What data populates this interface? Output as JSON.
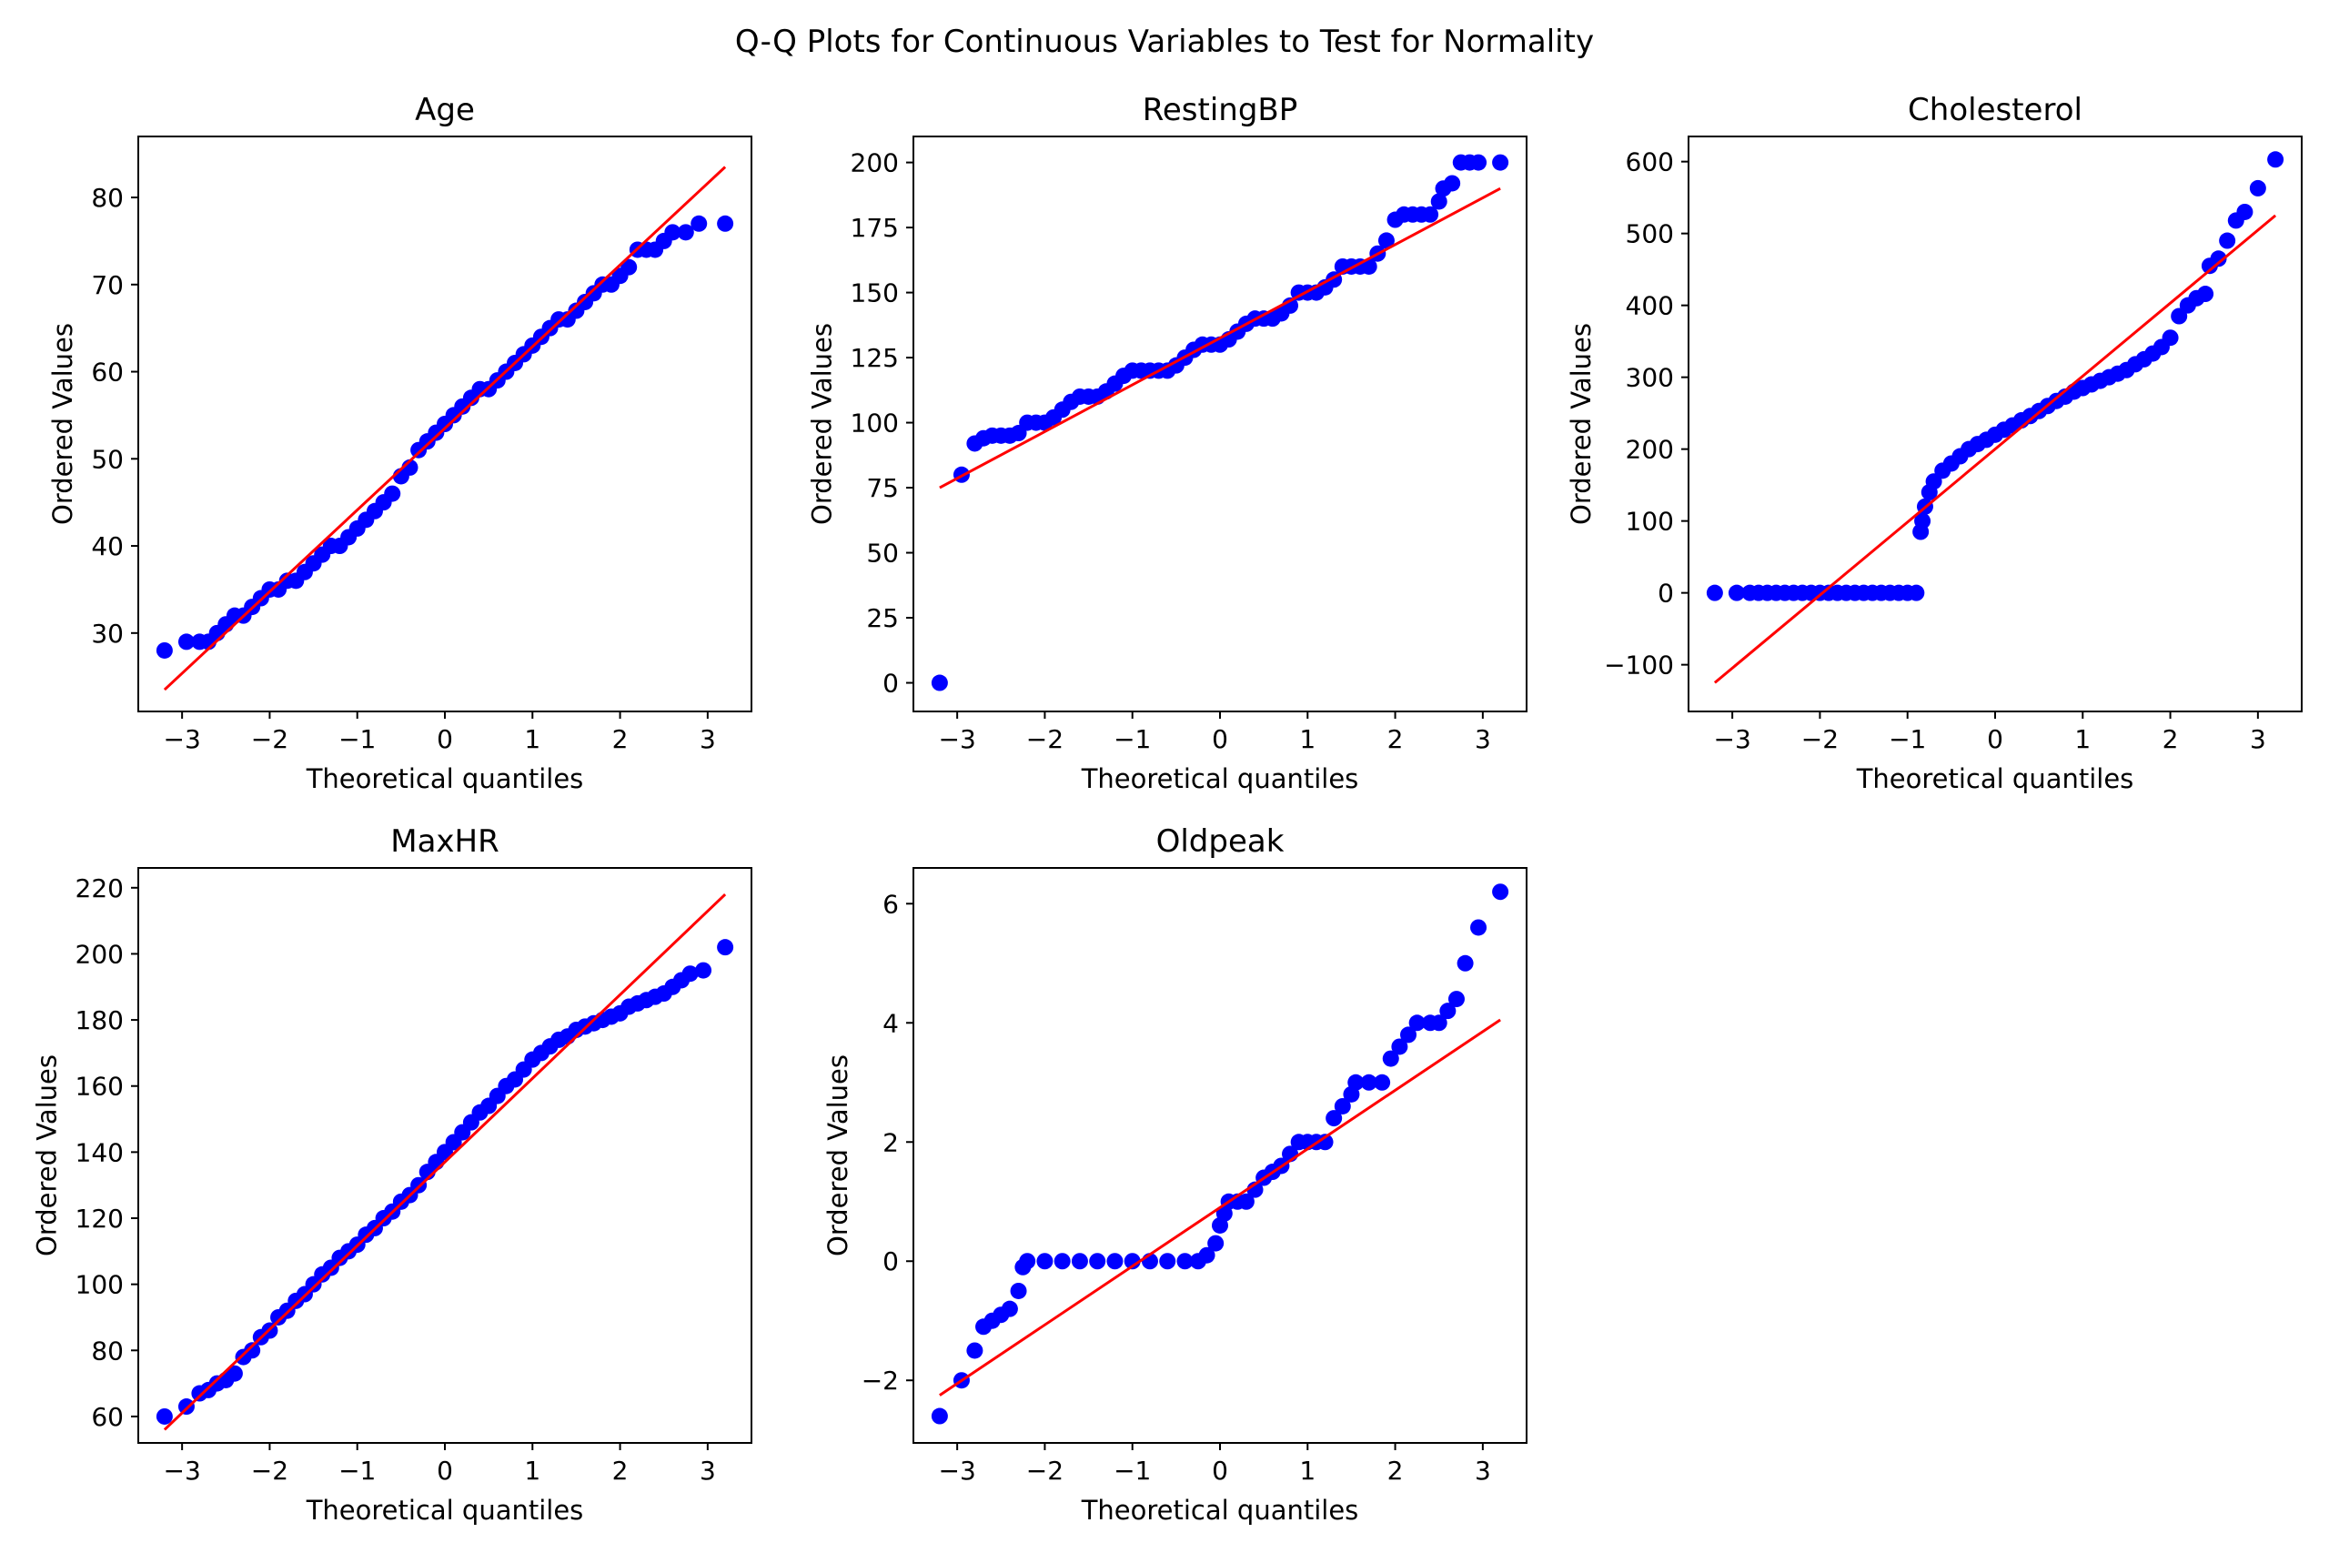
{
  "title": "Q-Q Plots for Continuous Variables to Test for Normality",
  "colors": {
    "points": "#0000ff",
    "fit_line": "#ff0000",
    "axes": "#000000"
  },
  "chart_data": [
    {
      "type": "scatter",
      "title": "Age",
      "xlabel": "Theoretical quantiles",
      "ylabel": "Ordered Values",
      "xlim": [
        -3.5,
        3.5
      ],
      "ylim": [
        21,
        87
      ],
      "xticks": [
        -3,
        -2,
        -1,
        0,
        1,
        2,
        3
      ],
      "yticks": [
        30,
        40,
        50,
        60,
        70,
        80
      ],
      "fit_line": [
        [
          -3.2,
          23.5
        ],
        [
          3.2,
          83.5
        ]
      ],
      "points": [
        [
          -3.2,
          28
        ],
        [
          -2.95,
          29
        ],
        [
          -2.8,
          29
        ],
        [
          -2.7,
          29
        ],
        [
          -2.6,
          30
        ],
        [
          -2.5,
          31
        ],
        [
          -2.4,
          32
        ],
        [
          -2.3,
          32
        ],
        [
          -2.2,
          33
        ],
        [
          -2.1,
          34
        ],
        [
          -2.0,
          35
        ],
        [
          -1.9,
          35
        ],
        [
          -1.8,
          36
        ],
        [
          -1.7,
          36
        ],
        [
          -1.6,
          37
        ],
        [
          -1.5,
          38
        ],
        [
          -1.4,
          39
        ],
        [
          -1.3,
          40
        ],
        [
          -1.2,
          40
        ],
        [
          -1.1,
          41
        ],
        [
          -1.0,
          42
        ],
        [
          -0.9,
          43
        ],
        [
          -0.8,
          44
        ],
        [
          -0.7,
          45
        ],
        [
          -0.6,
          46
        ],
        [
          -0.5,
          48
        ],
        [
          -0.4,
          49
        ],
        [
          -0.3,
          51
        ],
        [
          -0.2,
          52
        ],
        [
          -0.1,
          53
        ],
        [
          0.0,
          54
        ],
        [
          0.1,
          55
        ],
        [
          0.2,
          56
        ],
        [
          0.3,
          57
        ],
        [
          0.4,
          58
        ],
        [
          0.5,
          58
        ],
        [
          0.6,
          59
        ],
        [
          0.7,
          60
        ],
        [
          0.8,
          61
        ],
        [
          0.9,
          62
        ],
        [
          1.0,
          63
        ],
        [
          1.1,
          64
        ],
        [
          1.2,
          65
        ],
        [
          1.3,
          66
        ],
        [
          1.4,
          66
        ],
        [
          1.5,
          67
        ],
        [
          1.6,
          68
        ],
        [
          1.7,
          69
        ],
        [
          1.8,
          70
        ],
        [
          1.9,
          70
        ],
        [
          2.0,
          71
        ],
        [
          2.1,
          72
        ],
        [
          2.2,
          74
        ],
        [
          2.3,
          74
        ],
        [
          2.4,
          74
        ],
        [
          2.5,
          75
        ],
        [
          2.6,
          76
        ],
        [
          2.75,
          76
        ],
        [
          2.9,
          77
        ],
        [
          3.2,
          77
        ]
      ]
    },
    {
      "type": "scatter",
      "title": "RestingBP",
      "xlabel": "Theoretical quantiles",
      "ylabel": "Ordered Values",
      "xlim": [
        -3.5,
        3.5
      ],
      "ylim": [
        -11,
        210
      ],
      "xticks": [
        -3,
        -2,
        -1,
        0,
        1,
        2,
        3
      ],
      "yticks": [
        0,
        25,
        50,
        75,
        100,
        125,
        150,
        175,
        200
      ],
      "fit_line": [
        [
          -3.2,
          75
        ],
        [
          3.2,
          190
        ]
      ],
      "points": [
        [
          -3.2,
          0
        ],
        [
          -2.95,
          80
        ],
        [
          -2.8,
          92
        ],
        [
          -2.7,
          94
        ],
        [
          -2.6,
          95
        ],
        [
          -2.5,
          95
        ],
        [
          -2.4,
          95
        ],
        [
          -2.3,
          96
        ],
        [
          -2.2,
          100
        ],
        [
          -2.1,
          100
        ],
        [
          -2.0,
          100
        ],
        [
          -1.9,
          102
        ],
        [
          -1.8,
          105
        ],
        [
          -1.7,
          108
        ],
        [
          -1.6,
          110
        ],
        [
          -1.5,
          110
        ],
        [
          -1.4,
          110
        ],
        [
          -1.3,
          112
        ],
        [
          -1.2,
          115
        ],
        [
          -1.1,
          118
        ],
        [
          -1.0,
          120
        ],
        [
          -0.9,
          120
        ],
        [
          -0.8,
          120
        ],
        [
          -0.7,
          120
        ],
        [
          -0.6,
          120
        ],
        [
          -0.5,
          122
        ],
        [
          -0.4,
          125
        ],
        [
          -0.3,
          128
        ],
        [
          -0.2,
          130
        ],
        [
          -0.1,
          130
        ],
        [
          0.0,
          130
        ],
        [
          0.1,
          132
        ],
        [
          0.2,
          135
        ],
        [
          0.3,
          138
        ],
        [
          0.4,
          140
        ],
        [
          0.5,
          140
        ],
        [
          0.6,
          140
        ],
        [
          0.7,
          142
        ],
        [
          0.8,
          145
        ],
        [
          0.9,
          150
        ],
        [
          1.0,
          150
        ],
        [
          1.1,
          150
        ],
        [
          1.2,
          152
        ],
        [
          1.3,
          155
        ],
        [
          1.4,
          160
        ],
        [
          1.5,
          160
        ],
        [
          1.6,
          160
        ],
        [
          1.7,
          160
        ],
        [
          1.8,
          165
        ],
        [
          1.9,
          170
        ],
        [
          2.0,
          178
        ],
        [
          2.1,
          180
        ],
        [
          2.2,
          180
        ],
        [
          2.3,
          180
        ],
        [
          2.4,
          180
        ],
        [
          2.5,
          185
        ],
        [
          2.55,
          190
        ],
        [
          2.65,
          192
        ],
        [
          2.75,
          200
        ],
        [
          2.85,
          200
        ],
        [
          2.95,
          200
        ],
        [
          3.2,
          200
        ]
      ]
    },
    {
      "type": "scatter",
      "title": "Cholesterol",
      "xlabel": "Theoretical quantiles",
      "ylabel": "Ordered Values",
      "xlim": [
        -3.5,
        3.5
      ],
      "ylim": [
        -165,
        635
      ],
      "xticks": [
        -3,
        -2,
        -1,
        0,
        1,
        2,
        3
      ],
      "yticks": [
        -100,
        0,
        100,
        200,
        300,
        400,
        500,
        600
      ],
      "fit_line": [
        [
          -3.2,
          -125
        ],
        [
          3.2,
          525
        ]
      ],
      "points": [
        [
          -3.2,
          0
        ],
        [
          -2.95,
          0
        ],
        [
          -2.8,
          0
        ],
        [
          -2.7,
          0
        ],
        [
          -2.6,
          0
        ],
        [
          -2.5,
          0
        ],
        [
          -2.4,
          0
        ],
        [
          -2.3,
          0
        ],
        [
          -2.2,
          0
        ],
        [
          -2.1,
          0
        ],
        [
          -2.0,
          0
        ],
        [
          -1.9,
          0
        ],
        [
          -1.8,
          0
        ],
        [
          -1.7,
          0
        ],
        [
          -1.6,
          0
        ],
        [
          -1.5,
          0
        ],
        [
          -1.4,
          0
        ],
        [
          -1.3,
          0
        ],
        [
          -1.2,
          0
        ],
        [
          -1.1,
          0
        ],
        [
          -1.0,
          0
        ],
        [
          -0.9,
          0
        ],
        [
          -0.85,
          85
        ],
        [
          -0.83,
          100
        ],
        [
          -0.8,
          120
        ],
        [
          -0.75,
          140
        ],
        [
          -0.7,
          155
        ],
        [
          -0.6,
          170
        ],
        [
          -0.5,
          180
        ],
        [
          -0.4,
          190
        ],
        [
          -0.3,
          200
        ],
        [
          -0.2,
          207
        ],
        [
          -0.1,
          213
        ],
        [
          0.0,
          220
        ],
        [
          0.1,
          227
        ],
        [
          0.2,
          233
        ],
        [
          0.3,
          240
        ],
        [
          0.4,
          246
        ],
        [
          0.5,
          253
        ],
        [
          0.6,
          260
        ],
        [
          0.7,
          267
        ],
        [
          0.8,
          273
        ],
        [
          0.9,
          280
        ],
        [
          1.0,
          285
        ],
        [
          1.1,
          290
        ],
        [
          1.2,
          295
        ],
        [
          1.3,
          300
        ],
        [
          1.4,
          305
        ],
        [
          1.5,
          310
        ],
        [
          1.6,
          318
        ],
        [
          1.7,
          325
        ],
        [
          1.8,
          333
        ],
        [
          1.9,
          342
        ],
        [
          2.0,
          355
        ],
        [
          2.1,
          385
        ],
        [
          2.2,
          400
        ],
        [
          2.3,
          410
        ],
        [
          2.4,
          416
        ],
        [
          2.45,
          455
        ],
        [
          2.55,
          465
        ],
        [
          2.65,
          490
        ],
        [
          2.75,
          518
        ],
        [
          2.85,
          530
        ],
        [
          3.0,
          563
        ],
        [
          3.2,
          603
        ]
      ]
    },
    {
      "type": "scatter",
      "title": "MaxHR",
      "xlabel": "Theoretical quantiles",
      "ylabel": "Ordered Values",
      "xlim": [
        -3.5,
        3.5
      ],
      "ylim": [
        52,
        226
      ],
      "xticks": [
        -3,
        -2,
        -1,
        0,
        1,
        2,
        3
      ],
      "yticks": [
        60,
        80,
        100,
        120,
        140,
        160,
        180,
        200,
        220
      ],
      "fit_line": [
        [
          -3.2,
          56
        ],
        [
          3.2,
          218
        ]
      ],
      "points": [
        [
          -3.2,
          60
        ],
        [
          -2.95,
          63
        ],
        [
          -2.8,
          67
        ],
        [
          -2.7,
          68
        ],
        [
          -2.6,
          70
        ],
        [
          -2.5,
          71
        ],
        [
          -2.4,
          73
        ],
        [
          -2.3,
          78
        ],
        [
          -2.2,
          80
        ],
        [
          -2.1,
          84
        ],
        [
          -2.0,
          86
        ],
        [
          -1.9,
          90
        ],
        [
          -1.8,
          92
        ],
        [
          -1.7,
          95
        ],
        [
          -1.6,
          97
        ],
        [
          -1.5,
          100
        ],
        [
          -1.4,
          103
        ],
        [
          -1.3,
          105
        ],
        [
          -1.2,
          108
        ],
        [
          -1.1,
          110
        ],
        [
          -1.0,
          112
        ],
        [
          -0.9,
          115
        ],
        [
          -0.8,
          117
        ],
        [
          -0.7,
          120
        ],
        [
          -0.6,
          122
        ],
        [
          -0.5,
          125
        ],
        [
          -0.4,
          127
        ],
        [
          -0.3,
          130
        ],
        [
          -0.2,
          134
        ],
        [
          -0.1,
          137
        ],
        [
          0.0,
          140
        ],
        [
          0.1,
          143
        ],
        [
          0.2,
          146
        ],
        [
          0.3,
          149
        ],
        [
          0.4,
          152
        ],
        [
          0.5,
          154
        ],
        [
          0.6,
          157
        ],
        [
          0.7,
          160
        ],
        [
          0.8,
          162
        ],
        [
          0.9,
          165
        ],
        [
          1.0,
          168
        ],
        [
          1.1,
          170
        ],
        [
          1.2,
          172
        ],
        [
          1.3,
          174
        ],
        [
          1.4,
          175
        ],
        [
          1.5,
          177
        ],
        [
          1.6,
          178
        ],
        [
          1.7,
          179
        ],
        [
          1.8,
          180
        ],
        [
          1.9,
          181
        ],
        [
          2.0,
          182
        ],
        [
          2.1,
          184
        ],
        [
          2.2,
          185
        ],
        [
          2.3,
          186
        ],
        [
          2.4,
          187
        ],
        [
          2.5,
          188
        ],
        [
          2.6,
          190
        ],
        [
          2.7,
          192
        ],
        [
          2.8,
          194
        ],
        [
          2.95,
          195
        ],
        [
          3.2,
          202
        ]
      ]
    },
    {
      "type": "scatter",
      "title": "Oldpeak",
      "xlabel": "Theoretical quantiles",
      "ylabel": "Ordered Values",
      "xlim": [
        -3.5,
        3.5
      ],
      "ylim": [
        -3.05,
        6.6
      ],
      "xticks": [
        -3,
        -2,
        -1,
        0,
        1,
        2,
        3
      ],
      "yticks": [
        -2,
        0,
        2,
        4,
        6
      ],
      "fit_line": [
        [
          -3.2,
          -2.25
        ],
        [
          3.2,
          4.05
        ]
      ],
      "points": [
        [
          -3.2,
          -2.6
        ],
        [
          -2.95,
          -2.0
        ],
        [
          -2.8,
          -1.5
        ],
        [
          -2.7,
          -1.1
        ],
        [
          -2.6,
          -1.0
        ],
        [
          -2.5,
          -0.9
        ],
        [
          -2.4,
          -0.8
        ],
        [
          -2.3,
          -0.5
        ],
        [
          -2.25,
          -0.1
        ],
        [
          -2.2,
          0
        ],
        [
          -2.0,
          0
        ],
        [
          -1.8,
          0
        ],
        [
          -1.6,
          0
        ],
        [
          -1.4,
          0
        ],
        [
          -1.2,
          0
        ],
        [
          -1.0,
          0
        ],
        [
          -0.8,
          0
        ],
        [
          -0.6,
          0
        ],
        [
          -0.4,
          0
        ],
        [
          -0.25,
          0
        ],
        [
          -0.15,
          0.1
        ],
        [
          -0.05,
          0.3
        ],
        [
          0.0,
          0.6
        ],
        [
          0.05,
          0.8
        ],
        [
          0.1,
          1.0
        ],
        [
          0.2,
          1.0
        ],
        [
          0.3,
          1.0
        ],
        [
          0.4,
          1.2
        ],
        [
          0.5,
          1.4
        ],
        [
          0.6,
          1.5
        ],
        [
          0.7,
          1.6
        ],
        [
          0.8,
          1.8
        ],
        [
          0.9,
          2.0
        ],
        [
          1.0,
          2.0
        ],
        [
          1.1,
          2.0
        ],
        [
          1.2,
          2.0
        ],
        [
          1.3,
          2.4
        ],
        [
          1.4,
          2.6
        ],
        [
          1.5,
          2.8
        ],
        [
          1.55,
          3.0
        ],
        [
          1.7,
          3.0
        ],
        [
          1.85,
          3.0
        ],
        [
          1.95,
          3.4
        ],
        [
          2.05,
          3.6
        ],
        [
          2.15,
          3.8
        ],
        [
          2.25,
          4.0
        ],
        [
          2.4,
          4.0
        ],
        [
          2.5,
          4.0
        ],
        [
          2.6,
          4.2
        ],
        [
          2.7,
          4.4
        ],
        [
          2.8,
          5.0
        ],
        [
          2.95,
          5.6
        ],
        [
          3.2,
          6.2
        ]
      ]
    }
  ]
}
